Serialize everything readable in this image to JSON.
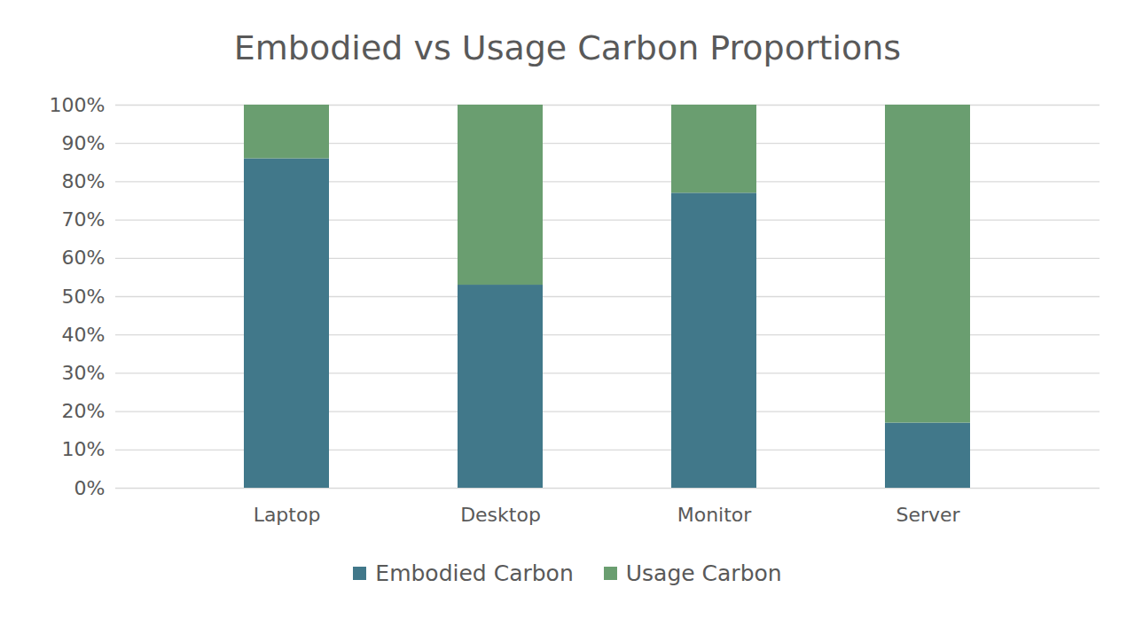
{
  "chart_data": {
    "type": "bar",
    "stacked": true,
    "title": "Embodied vs Usage Carbon Proportions",
    "categories": [
      "Laptop",
      "Desktop",
      "Monitor",
      "Server"
    ],
    "series": [
      {
        "name": "Embodied Carbon",
        "color": "#41788a",
        "values": [
          86,
          53,
          77,
          17
        ]
      },
      {
        "name": "Usage Carbon",
        "color": "#6a9e70",
        "values": [
          14,
          47,
          23,
          83
        ]
      }
    ],
    "ylim": [
      0,
      100
    ],
    "yticks": [
      {
        "value": 0,
        "label": "0%"
      },
      {
        "value": 10,
        "label": "10%"
      },
      {
        "value": 20,
        "label": "20%"
      },
      {
        "value": 30,
        "label": "30%"
      },
      {
        "value": 40,
        "label": "40%"
      },
      {
        "value": 50,
        "label": "50%"
      },
      {
        "value": 60,
        "label": "60%"
      },
      {
        "value": 70,
        "label": "70%"
      },
      {
        "value": 80,
        "label": "80%"
      },
      {
        "value": 90,
        "label": "90%"
      },
      {
        "value": 100,
        "label": "100%"
      }
    ],
    "grid": true,
    "legend": "bottom"
  }
}
